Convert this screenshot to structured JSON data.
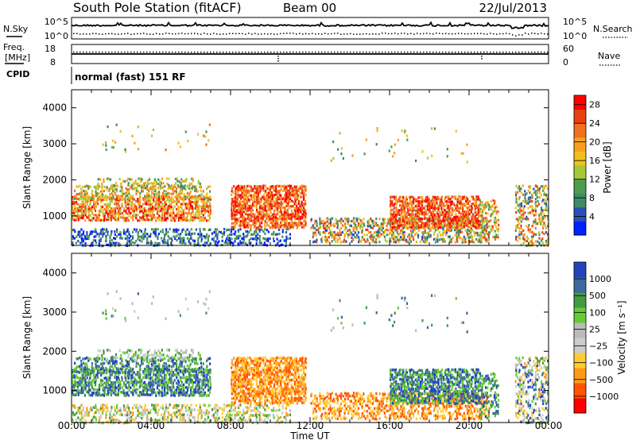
{
  "header": {
    "station": "South Pole Station (fitACF)",
    "beam": "Beam 00",
    "date": "22/Jul/2013"
  },
  "top_panels": {
    "nsky_label": "N.Sky",
    "nsearch_label": "N.Search",
    "noise_ticks": [
      "10^5",
      "10^0"
    ],
    "noise_ticks_right": [
      "10^5",
      "10^0"
    ],
    "freq_label_1": "Freq.",
    "freq_label_2": "[MHz]",
    "freq_ticks": [
      "18",
      "8"
    ],
    "nave_label": "Nave",
    "nave_ticks": [
      "60",
      "0"
    ],
    "cpid_label": "CPID",
    "cpid_text": "normal (fast) 151 RF"
  },
  "colors": {
    "power_scale": [
      "#0022ff",
      "#2c4fb8",
      "#3f8a66",
      "#4e9a50",
      "#a6c838",
      "#f0c020",
      "#f7a020",
      "#f07020",
      "#e84010",
      "#ff0000"
    ],
    "velocity_scale": [
      "#ff0000",
      "#ff5500",
      "#ff9a1a",
      "#ffcc33",
      "#cccccc",
      "#bbbbbb",
      "#66cc33",
      "#449944",
      "#3a6aa0",
      "#2244bb"
    ]
  },
  "chart_data": [
    {
      "type": "heatmap",
      "ylabel": "Slant Range [km]",
      "x_ticks": [
        "00:00",
        "04:00",
        "08:00",
        "12:00",
        "16:00",
        "20:00",
        "00:00"
      ],
      "y_ticks": [
        1000,
        2000,
        3000,
        4000
      ],
      "ylim": [
        180,
        4500
      ],
      "colorbar": {
        "label": "Power [dB]",
        "ticks": [
          4,
          8,
          12,
          16,
          20,
          24,
          28
        ],
        "range": [
          0,
          30
        ]
      }
    },
    {
      "type": "heatmap",
      "xlabel": "Time UT",
      "ylabel": "Slant Range [km]",
      "x_ticks": [
        "00:00",
        "04:00",
        "08:00",
        "12:00",
        "16:00",
        "20:00",
        "00:00"
      ],
      "y_ticks": [
        1000,
        2000,
        3000,
        4000
      ],
      "ylim": [
        180,
        4500
      ],
      "colorbar": {
        "label": "Velocity [m s⁻¹]",
        "ticks": [
          "1000",
          "500",
          "100",
          "25",
          "−25",
          "−100",
          "−500",
          "−1000"
        ]
      }
    }
  ]
}
